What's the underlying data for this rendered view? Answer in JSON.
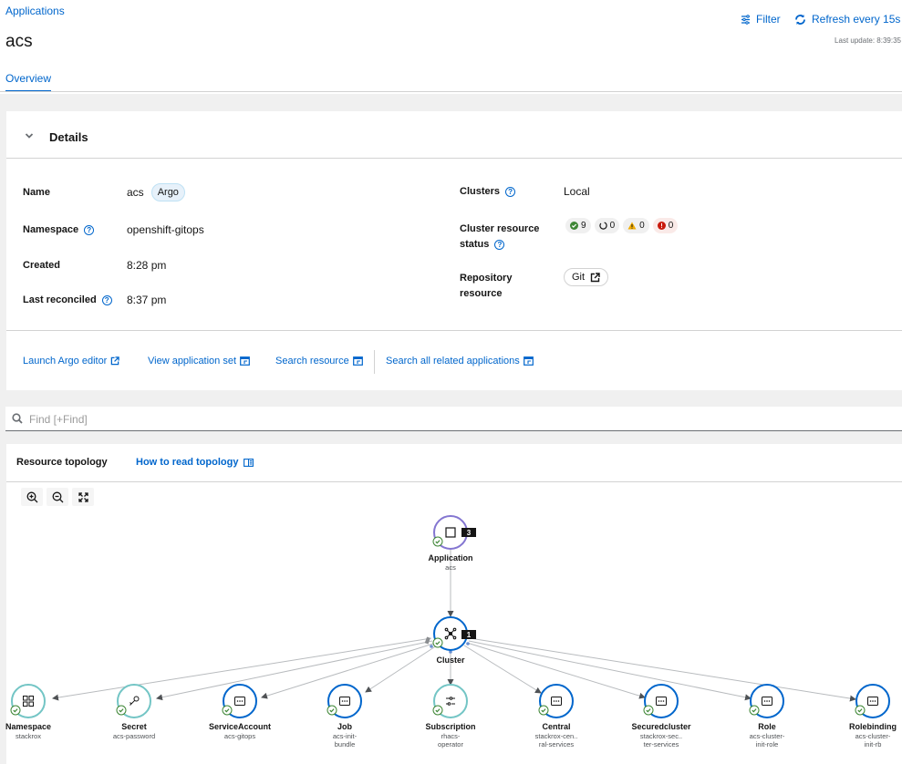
{
  "breadcrumb": "Applications",
  "title": "acs",
  "toolbar": {
    "filter_label": "Filter",
    "refresh_label": "Refresh every 15s",
    "last_update": "Last update: 8:39:35"
  },
  "tabs": [
    {
      "label": "Overview",
      "active": true
    }
  ],
  "details": {
    "title": "Details",
    "name_label": "Name",
    "name_value": "acs",
    "name_badge": "Argo",
    "namespace_label": "Namespace",
    "namespace_value": "openshift-gitops",
    "created_label": "Created",
    "created_value": "8:28 pm",
    "reconciled_label": "Last reconciled",
    "reconciled_value": "8:37 pm",
    "clusters_label": "Clusters",
    "clusters_value": "Local",
    "status_label_1": "Cluster resource",
    "status_label_2": "status",
    "status_counts": {
      "healthy": "9",
      "progressing": "0",
      "warning": "0",
      "failed": "0"
    },
    "repo_label_1": "Repository",
    "repo_label_2": "resource",
    "repo_value": "Git"
  },
  "actions": {
    "launch_argo": "Launch Argo editor",
    "view_appset": "View application set",
    "search_resource": "Search resource",
    "search_related": "Search all related applications"
  },
  "find": {
    "placeholder": "Find [+Find]"
  },
  "topology": {
    "title": "Resource topology",
    "howto": "How to read topology",
    "application": {
      "label": "Application",
      "sub": "acs",
      "count": "3"
    },
    "cluster": {
      "label": "Cluster",
      "count": "1"
    },
    "resources": [
      {
        "label": "Namespace",
        "sub1": "stackrox",
        "sub2": "",
        "icon": "namespace-icon"
      },
      {
        "label": "Secret",
        "sub1": "acs-password",
        "sub2": "",
        "icon": "key-icon"
      },
      {
        "label": "ServiceAccount",
        "sub1": "acs-gitops",
        "sub2": "",
        "icon": "more-icon"
      },
      {
        "label": "Job",
        "sub1": "acs-init-",
        "sub2": "bundle",
        "icon": "more-icon"
      },
      {
        "label": "Subscription",
        "sub1": "rhacs-",
        "sub2": "operator",
        "icon": "subscription-icon"
      },
      {
        "label": "Central",
        "sub1": "stackrox-cen..",
        "sub2": "ral-services",
        "icon": "more-icon"
      },
      {
        "label": "Securedcluster",
        "sub1": "stackrox-sec..",
        "sub2": "ter-services",
        "icon": "more-icon"
      },
      {
        "label": "Role",
        "sub1": "acs-cluster-",
        "sub2": "init-role",
        "icon": "more-icon"
      },
      {
        "label": "Rolebinding",
        "sub1": "acs-cluster-",
        "sub2": "init-rb",
        "icon": "more-icon"
      }
    ]
  }
}
